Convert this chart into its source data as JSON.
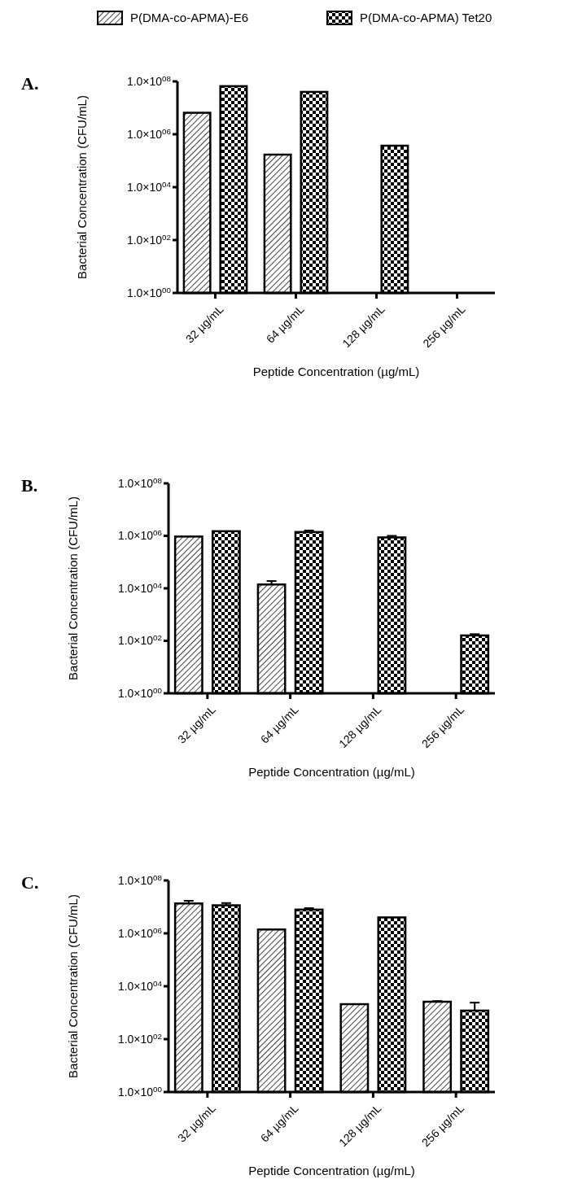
{
  "chart_data": [
    {
      "type": "bar",
      "title": "A.",
      "xlabel": "Peptide Concentration (µg/mL)",
      "ylabel": "Bacterial Concentration (CFU/mL)",
      "categories": [
        "32 µg/mL",
        "64 µg/mL",
        "128 µg/mL",
        "256 µg/mL"
      ],
      "log": "y",
      "ylim": [
        1,
        100000000
      ],
      "yticks": [
        {
          "value": 1,
          "label": "1.0×10$^{00}$"
        },
        {
          "value": 100,
          "label": "1.0×10$^{02}$"
        },
        {
          "value": 10000,
          "label": "1.0×10$^{04}$"
        },
        {
          "value": 1000000,
          "label": "1.0×10$^{06}$"
        },
        {
          "value": 100000000,
          "label": "1.0×10$^{08}$"
        }
      ],
      "legend": "top",
      "series": [
        {
          "name": "P(DMA-co-APMA)-E6",
          "color": "#000000",
          "values": [
            6500000,
            170000,
            null,
            null
          ]
        },
        {
          "name": "P(DMA-co-APMA) Tet20",
          "color": "#000000",
          "values": [
            66000000,
            40000000,
            370000,
            null
          ]
        }
      ]
    },
    {
      "type": "bar",
      "title": "B.",
      "xlabel": "Peptide Concentration (µg/mL)",
      "ylabel": "Bacterial Concentration (CFU/mL)",
      "categories": [
        "32 µg/mL",
        "64 µg/mL",
        "128 µg/mL",
        "256 µg/mL"
      ],
      "log": "y",
      "ylim": [
        1,
        100000000
      ],
      "yticks": [
        {
          "value": 1,
          "label": "1.0×10$^{00}$"
        },
        {
          "value": 100,
          "label": "1.0×10$^{02}$"
        },
        {
          "value": 10000,
          "label": "1.0×10$^{04}$"
        },
        {
          "value": 1000000,
          "label": "1.0×10$^{06}$"
        },
        {
          "value": 100000000,
          "label": "1.0×10$^{08}$"
        }
      ],
      "series": [
        {
          "color": "#000000",
          "values": [
            940000,
            14000,
            null,
            null
          ],
          "errors": [
            null,
            [
              14000,
              19000
            ],
            null,
            null
          ]
        },
        {
          "color": "#000000",
          "values": [
            1500000,
            1400000,
            870000,
            160
          ],
          "errors": [
            null,
            [
              1400000,
              1600000
            ],
            [
              870000,
              1000000
            ],
            [
              160,
              180
            ]
          ]
        }
      ]
    },
    {
      "type": "bar",
      "title": "C.",
      "xlabel": "Peptide Concentration (µg/mL)",
      "ylabel": "Bacterial Concentration (CFU/mL)",
      "categories": [
        "32 µg/mL",
        "64 µg/mL",
        "128 µg/mL",
        "256 µg/mL"
      ],
      "log": "y",
      "ylim": [
        1,
        100000000
      ],
      "yticks": [
        {
          "value": 1,
          "label": "1.0×10$^{00}$"
        },
        {
          "value": 100,
          "label": "1.0×10$^{02}$"
        },
        {
          "value": 10000,
          "label": "1.0×10$^{04}$"
        },
        {
          "value": 1000000,
          "label": "1.0×10$^{06}$"
        },
        {
          "value": 100000000,
          "label": "1.0×10$^{08}$"
        }
      ],
      "series": [
        {
          "color": "#000000",
          "values": [
            13500000,
            1400000,
            2100,
            2600
          ],
          "errors": [
            [
              13500000,
              17000000
            ],
            null,
            null,
            [
              2600,
              2750
            ]
          ]
        },
        {
          "color": "#000000",
          "values": [
            11500000,
            7900000,
            4000000,
            1200
          ],
          "errors": [
            [
              11500000,
              14000000
            ],
            [
              7900000,
              9000000
            ],
            null,
            [
              1200,
              2400
            ]
          ]
        }
      ]
    }
  ]
}
